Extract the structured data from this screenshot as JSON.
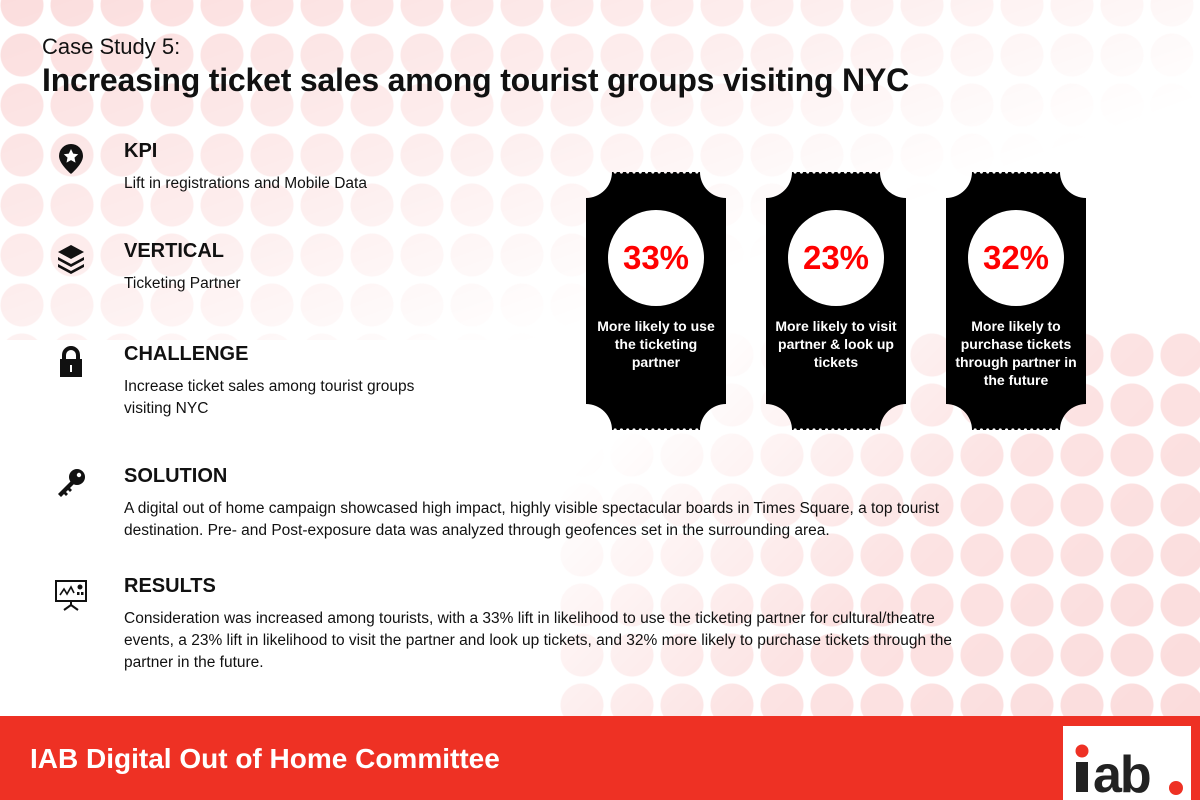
{
  "header": {
    "kicker": "Case Study 5:",
    "title": "Increasing ticket sales among tourist groups visiting NYC"
  },
  "sections": [
    {
      "icon": "map-pin-star-icon",
      "heading": "KPI",
      "text": "Lift in registrations and Mobile Data"
    },
    {
      "icon": "layers-icon",
      "heading": "VERTICAL",
      "text": "Ticketing Partner"
    },
    {
      "icon": "lock-icon",
      "heading": "CHALLENGE",
      "text": "Increase ticket sales among tourist groups visiting NYC"
    },
    {
      "icon": "key-icon",
      "heading": "SOLUTION",
      "text": "A digital out of home campaign showcased high impact, highly visible spectacular boards in Times Square, a top tourist destination. Pre- and Post-exposure data was analyzed through geofences set in the surrounding area."
    },
    {
      "icon": "presentation-chart-icon",
      "heading": "RESULTS",
      "text": "Consideration was increased among tourists, with a 33% lift in likelihood to use the ticketing partner for cultural/theatre events, a 23% lift in likelihood to visit the partner and look up tickets, and 32% more likely to purchase tickets through the partner in the future."
    }
  ],
  "tickets": [
    {
      "value": "33%",
      "label": "More likely to use the ticketing partner"
    },
    {
      "value": "23%",
      "label": "More likely to visit partner & look up tickets"
    },
    {
      "value": "32%",
      "label": "More likely to purchase tickets through partner in the future"
    }
  ],
  "footer": {
    "text": "IAB Digital Out of Home Committee",
    "logo": "iab."
  },
  "colors": {
    "accent": "#ee3124",
    "stat": "#ff0000",
    "dots": "#fbdcdc"
  }
}
